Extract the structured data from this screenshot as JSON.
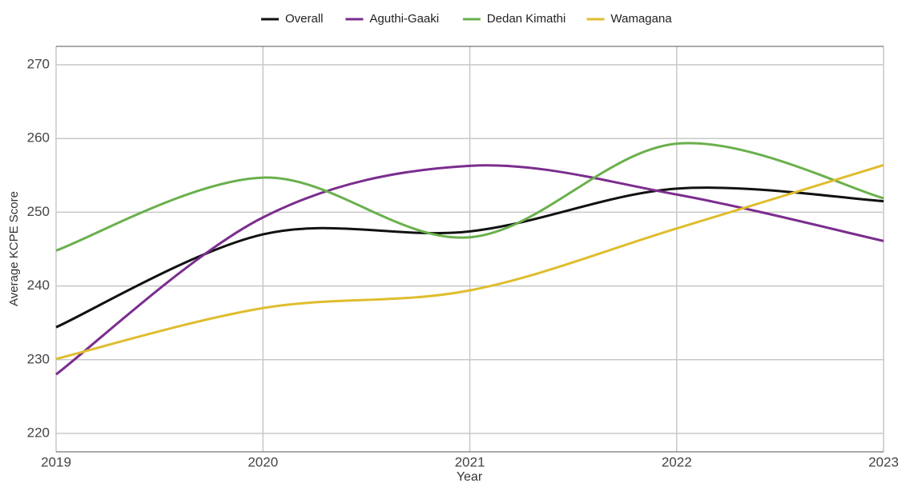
{
  "chart_data": {
    "type": "line",
    "x_label": "Year",
    "y_label": "Average KCPE Score",
    "x": [
      2019,
      2020,
      2021,
      2022,
      2023
    ],
    "series": [
      {
        "name": "Overall",
        "color": "#111111",
        "values": [
          234.4,
          247.0,
          247.4,
          253.2,
          251.5
        ]
      },
      {
        "name": "Aguthi-Gaaki",
        "color": "#7b2d8e",
        "values": [
          228.0,
          249.3,
          256.3,
          252.4,
          246.1
        ]
      },
      {
        "name": "Dedan Kimathi",
        "color": "#6ab04c",
        "values": [
          244.8,
          254.7,
          246.6,
          259.3,
          251.9
        ]
      },
      {
        "name": "Wamagana",
        "color": "#dfbd2e",
        "values": [
          230.1,
          237.0,
          239.4,
          247.8,
          256.4
        ]
      }
    ],
    "xlim": [
      2019,
      2023
    ],
    "xticks": [
      2019,
      2020,
      2021,
      2022,
      2023
    ],
    "ylim": [
      217.5,
      272.5
    ],
    "yticks": [
      220,
      230,
      240,
      250,
      260,
      270
    ],
    "grid": true,
    "legend": "top"
  }
}
